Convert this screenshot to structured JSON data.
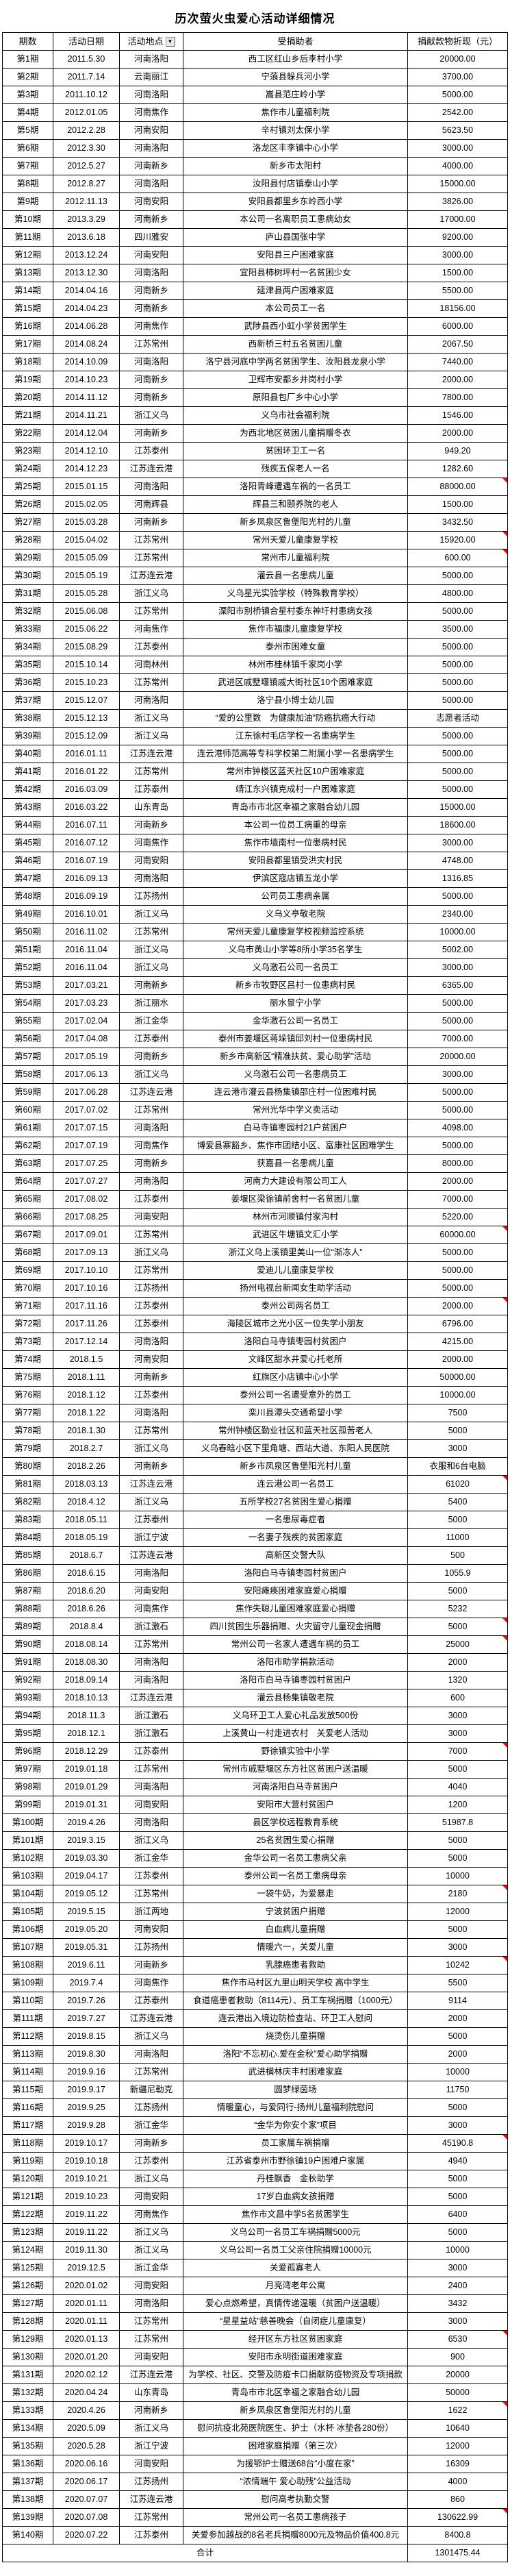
{
  "title": "历次萤火虫爱心活动详细情况",
  "colors": {
    "note_marker": "#ff0000",
    "grid": "#000000",
    "filter_button_bg": "#e8e8e8"
  },
  "table": {
    "headers": [
      "期数",
      "活动日期",
      "活动地点",
      "受捐助者",
      "捐献款物折现（元）"
    ],
    "filter_glyph": "▼",
    "total_label": "合计",
    "total_amount": "1301475.44",
    "rows": [
      {
        "p": "第1期",
        "d": "2011.5.30",
        "l": "河南洛阳",
        "r": "西工区红山乡后李村小学",
        "a": "20000.00"
      },
      {
        "p": "第2期",
        "d": "2011.7.14",
        "l": "云南丽江",
        "r": "宁蒗县躲兵河小学",
        "a": "3700.00"
      },
      {
        "p": "第3期",
        "d": "2011.10.12",
        "l": "河南洛阳",
        "r": "嵩县范庄岭小学",
        "a": "5000.00"
      },
      {
        "p": "第4期",
        "d": "2012.01.05",
        "l": "河南焦作",
        "r": "焦作市儿童福利院",
        "a": "2542.00"
      },
      {
        "p": "第5期",
        "d": "2012.2.28",
        "l": "河南安阳",
        "r": "辛村镇刘太保小学",
        "a": "5623.50"
      },
      {
        "p": "第6期",
        "d": "2012.3.30",
        "l": "河南洛阳",
        "r": "洛龙区丰李镇中心小学",
        "a": "3000.00"
      },
      {
        "p": "第7期",
        "d": "2012.5.27",
        "l": "河南新乡",
        "r": "新乡市太阳村",
        "a": "4000.00"
      },
      {
        "p": "第8期",
        "d": "2012.8.27",
        "l": "河南洛阳",
        "r": "汝阳县付店镇泰山小学",
        "a": "15000.00"
      },
      {
        "p": "第9期",
        "d": "2012.11.13",
        "l": "河南安阳",
        "r": "安阳县都里乡东岭西小学",
        "a": "3826.00"
      },
      {
        "p": "第10期",
        "d": "2013.3.29",
        "l": "河南新乡",
        "r": "本公司一名离职员工患病幼女",
        "a": "17000.00"
      },
      {
        "p": "第11期",
        "d": "2013.6.18",
        "l": "四川雅安",
        "r": "庐山县国张中学",
        "a": "9200.00"
      },
      {
        "p": "第12期",
        "d": "2013.12.24",
        "l": "河南安阳",
        "r": "安阳县三户困难家庭",
        "a": "3000.00"
      },
      {
        "p": "第13期",
        "d": "2013.12.30",
        "l": "河南洛阳",
        "r": "宜阳县柿树坪村一名贫困少女",
        "a": "1500.00"
      },
      {
        "p": "第14期",
        "d": "2014.04.16",
        "l": "河南新乡",
        "r": "延津县两户困难家庭",
        "a": "5500.00"
      },
      {
        "p": "第15期",
        "d": "2014.04.23",
        "l": "河南新乡",
        "r": "本公司员工一名",
        "a": "18156.00"
      },
      {
        "p": "第16期",
        "d": "2014.06.28",
        "l": "河南焦作",
        "r": "武陟县西小虹小学贫困学生",
        "a": "6000.00"
      },
      {
        "p": "第17期",
        "d": "2014.08.24",
        "l": "江苏常州",
        "r": "西新桥三村五名贫困儿童",
        "a": "2067.50"
      },
      {
        "p": "第18期",
        "d": "2014.10.09",
        "l": "河南洛阳",
        "r": "洛宁县河底中学两名贫困学生、汝阳县龙泉小学",
        "a": "7440.00"
      },
      {
        "p": "第19期",
        "d": "2014.10.23",
        "l": "河南新乡",
        "r": "卫辉市安都乡井岗村小学",
        "a": "2000.00"
      },
      {
        "p": "第20期",
        "d": "2014.11.12",
        "l": "河南新乡",
        "r": "原阳县包厂乡中心小学",
        "a": "7800.00"
      },
      {
        "p": "第21期",
        "d": "2014.11.21",
        "l": "浙江义乌",
        "r": "义乌市社会福利院",
        "a": "1546.00"
      },
      {
        "p": "第22期",
        "d": "2014.12.04",
        "l": "河南新乡",
        "r": "为西北地区贫困儿童捐赠冬衣",
        "a": "2000.00"
      },
      {
        "p": "第23期",
        "d": "2014.12.10",
        "l": "江苏泰州",
        "r": "贫困环卫工一名",
        "a": "949.20"
      },
      {
        "p": "第24期",
        "d": "2014.12.23",
        "l": "江苏连云港",
        "r": "残疾五保老人一名",
        "a": "1282.60"
      },
      {
        "p": "第25期",
        "d": "2015.01.15",
        "l": "河南洛阳",
        "r": "洛阳青峰遭遇车祸的一名员工",
        "a": "88000.00",
        "n": true
      },
      {
        "p": "第26期",
        "d": "2015.02.05",
        "l": "河南辉县",
        "r": "辉县三和颐养院的老人",
        "a": "1500.00"
      },
      {
        "p": "第27期",
        "d": "2015.03.28",
        "l": "河南新乡",
        "r": "新乡凤泉区鲁堡阳光村的儿童",
        "a": "3432.50"
      },
      {
        "p": "第28期",
        "d": "2015.04.02",
        "l": "江苏常州",
        "r": "常州天爱儿童康复学校",
        "a": "15920.00",
        "n": true
      },
      {
        "p": "第29期",
        "d": "2015.05.09",
        "l": "江苏常州",
        "r": "常州市儿童福利院",
        "a": "600.00",
        "n": true
      },
      {
        "p": "第30期",
        "d": "2015.05.19",
        "l": "江苏连云港",
        "r": "灌云县一名患病儿童",
        "a": "5000.00"
      },
      {
        "p": "第31期",
        "d": "2015.05.28",
        "l": "浙江义乌",
        "r": "义乌星光实验学校（特殊教育学校）",
        "a": "4800.00"
      },
      {
        "p": "第32期",
        "d": "2015.06.08",
        "l": "江苏常州",
        "r": "溧阳市别桥镇合星村委东神圩村患病女孩",
        "a": "5000.00"
      },
      {
        "p": "第33期",
        "d": "2015.06.22",
        "l": "河南焦作",
        "r": "焦作市福康儿童康复学校",
        "a": "3500.00"
      },
      {
        "p": "第34期",
        "d": "2015.08.29",
        "l": "江苏泰州",
        "r": "泰州市困难女童",
        "a": "5000.00"
      },
      {
        "p": "第35期",
        "d": "2015.10.14",
        "l": "河南林州",
        "r": "林州市桂林镇千家岗小学",
        "a": "5000.00"
      },
      {
        "p": "第36期",
        "d": "2015.10.23",
        "l": "江苏常州",
        "r": "武进区戚墅堰镇戚大街社区10个困难家庭",
        "a": "5000.00"
      },
      {
        "p": "第37期",
        "d": "2015.12.07",
        "l": "河南洛阳",
        "r": "洛宁县小博士幼儿园",
        "a": "5000.00"
      },
      {
        "p": "第38期",
        "d": "2015.12.13",
        "l": "浙江义乌",
        "r": "“爱的公里数　为健康加油”防癌抗癌大行动",
        "a": "志愿者活动"
      },
      {
        "p": "第39期",
        "d": "2015.12.09",
        "l": "浙江义乌",
        "r": "江东徐村毛店学校一名患病学生",
        "a": "5000.00"
      },
      {
        "p": "第40期",
        "d": "2016.01.11",
        "l": "江苏连云港",
        "r": "连云港师范高等专科学校第二附属小学一名患病学生",
        "a": "5000.00"
      },
      {
        "p": "第41期",
        "d": "2016.01.22",
        "l": "江苏常州",
        "r": "常州市钟楼区蓝天社区10户困难家庭",
        "a": "5000.00"
      },
      {
        "p": "第42期",
        "d": "2016.03.09",
        "l": "江苏泰州",
        "r": "靖江东兴镇克成村一户困难家庭",
        "a": "5000.00"
      },
      {
        "p": "第43期",
        "d": "2016.03.22",
        "l": "山东青岛",
        "r": "青岛市市北区幸福之家融合幼儿园",
        "a": "15000.00"
      },
      {
        "p": "第44期",
        "d": "2016.07.11",
        "l": "河南新乡",
        "r": "本公司一位员工病重的母亲",
        "a": "18600.00"
      },
      {
        "p": "第45期",
        "d": "2016.07.12",
        "l": "河南焦作",
        "r": "焦作市墙南村一位患病村民",
        "a": "3000.00"
      },
      {
        "p": "第46期",
        "d": "2016.07.19",
        "l": "河南安阳",
        "r": "安阳县都里镇受洪灾村民",
        "a": "4748.00"
      },
      {
        "p": "第47期",
        "d": "2016.09.13",
        "l": "河南洛阳",
        "r": "伊滨区寇店镇五龙小学",
        "a": "1316.85"
      },
      {
        "p": "第48期",
        "d": "2016.09.19",
        "l": "江苏扬州",
        "r": "公司员工患病亲属",
        "a": "5000.00"
      },
      {
        "p": "第49期",
        "d": "2016.10.01",
        "l": "浙江义乌",
        "r": "义乌义亭敬老院",
        "a": "2340.00"
      },
      {
        "p": "第50期",
        "d": "2016.11.02",
        "l": "江苏常州",
        "r": "常州天爱儿童康复学校视频监控系统",
        "a": "10000.00"
      },
      {
        "p": "第51期",
        "d": "2016.11.04",
        "l": "浙江义乌",
        "r": "义乌市黄山小学等8所小学35名学生",
        "a": "5002.00"
      },
      {
        "p": "第52期",
        "d": "2016.11.04",
        "l": "浙江义乌",
        "r": "义乌激石公司一名员工",
        "a": "3000.00"
      },
      {
        "p": "第53期",
        "d": "2017.03.21",
        "l": "河南新乡",
        "r": "新乡市牧野区吕村一位患病村民",
        "a": "6365.00"
      },
      {
        "p": "第54期",
        "d": "2017.03.23",
        "l": "浙江丽水",
        "r": "丽水景宁小学",
        "a": "5000.00"
      },
      {
        "p": "第55期",
        "d": "2017.02.04",
        "l": "浙江金华",
        "r": "金华激石公司一名员工",
        "a": "5000.00"
      },
      {
        "p": "第56期",
        "d": "2017.04.08",
        "l": "江苏泰州",
        "r": "泰州市姜堰区蒋垛镇邱刘村一位患病村民",
        "a": "7000.00"
      },
      {
        "p": "第57期",
        "d": "2017.05.19",
        "l": "河南新乡",
        "r": "新乡市高新区“精准扶贫、爱心助学”活动",
        "a": "20000.00"
      },
      {
        "p": "第58期",
        "d": "2017.06.13",
        "l": "浙江义乌",
        "r": "义乌激石公司一名患病员工",
        "a": "3000.00"
      },
      {
        "p": "第59期",
        "d": "2017.06.28",
        "l": "江苏连云港",
        "r": "连云港市灌云县杨集镇邵庄村一位困难村民",
        "a": "5000.00"
      },
      {
        "p": "第60期",
        "d": "2017.07.02",
        "l": "江苏常州",
        "r": "常州光华中学义卖活动",
        "a": "5000.00"
      },
      {
        "p": "第61期",
        "d": "2017.07.15",
        "l": "河南洛阳",
        "r": "白马寺镇枣园村21户贫困户",
        "a": "4098.00"
      },
      {
        "p": "第62期",
        "d": "2017.07.19",
        "l": "河南焦作",
        "r": "博爱县寨豁乡、焦作市团结小区、富康社区困难学生",
        "a": "5000.00"
      },
      {
        "p": "第63期",
        "d": "2017.07.25",
        "l": "河南新乡",
        "r": "获嘉县一名患病儿童",
        "a": "8000.00"
      },
      {
        "p": "第64期",
        "d": "2017.07.27",
        "l": "河南洛阳",
        "r": "河南力大建设有限公司工人",
        "a": "2000.00"
      },
      {
        "p": "第65期",
        "d": "2017.08.02",
        "l": "江苏泰州",
        "r": "姜堰区梁徐镇前舍村一名贫困儿童",
        "a": "7000.00"
      },
      {
        "p": "第66期",
        "d": "2017.08.25",
        "l": "河南安阳",
        "r": "林州市河顺镇付家沟村",
        "a": "5220.00"
      },
      {
        "p": "第67期",
        "d": "2017.09.01",
        "l": "江苏常州",
        "r": "武进区牛塘镇文汇小学",
        "a": "60000.00",
        "n": true
      },
      {
        "p": "第68期",
        "d": "2017.09.13",
        "l": "浙江义乌",
        "r": "浙江义乌上溪镇里美山一位“渐冻人”",
        "a": "5000.00"
      },
      {
        "p": "第69期",
        "d": "2017.10.10",
        "l": "江苏常州",
        "r": "爱迪儿儿童康复学校",
        "a": "5000.00"
      },
      {
        "p": "第70期",
        "d": "2017.10.16",
        "l": "江苏扬州",
        "r": "扬州电视台新闻女生助学活动",
        "a": "5000.00"
      },
      {
        "p": "第71期",
        "d": "2017.11.16",
        "l": "江苏泰州",
        "r": "泰州公司两名员工",
        "a": "2000.00",
        "n": true
      },
      {
        "p": "第72期",
        "d": "2017.11.26",
        "l": "江苏泰州",
        "r": "海陵区城市之光小区一位失学小朋友",
        "a": "6796.00"
      },
      {
        "p": "第73期",
        "d": "2017.12.14",
        "l": "河南洛阳",
        "r": "洛阳白马寺镇枣园村贫困户",
        "a": "4215.00"
      },
      {
        "p": "第74期",
        "d": "2018.1.5",
        "l": "河南安阳",
        "r": "文峰区甜水井爱心托老所",
        "a": "2000.00"
      },
      {
        "p": "第75期",
        "d": "2018.1.11",
        "l": "河南新乡",
        "r": "红旗区小店镇中心小学",
        "a": "50000.00"
      },
      {
        "p": "第76期",
        "d": "2018.1.12",
        "l": "江苏泰州",
        "r": "泰州公司一名遭受意外的员工",
        "a": "10000.00"
      },
      {
        "p": "第77期",
        "d": "2018.1.22",
        "l": "河南洛阳",
        "r": "栾川县潭头交通希望小学",
        "a": "7500"
      },
      {
        "p": "第78期",
        "d": "2018.1.30",
        "l": "江苏常州",
        "r": "常州钟楼区勤业社区和蓝天社区孤苦老人",
        "a": "5000"
      },
      {
        "p": "第79期",
        "d": "2018.2.7",
        "l": "浙江义乌",
        "r": "义乌春晗小区下里角塘、西站大道、东阳人民医院",
        "a": "3000"
      },
      {
        "p": "第80期",
        "d": "2018.2.26",
        "l": "河南新乡",
        "r": "新乡市凤泉区鲁堡阳光村儿童",
        "a": "衣服和6台电脑"
      },
      {
        "p": "第81期",
        "d": "2018.03.13",
        "l": "江苏连云港",
        "r": "连云港公司一名员工",
        "a": "61020",
        "n": true
      },
      {
        "p": "第82期",
        "d": "2018.4.12",
        "l": "浙江义乌",
        "r": "五所学校27名贫困生爱心捐赠",
        "a": "5400"
      },
      {
        "p": "第83期",
        "d": "2018.05.11",
        "l": "江苏泰州",
        "r": "一名患尿毒症者",
        "a": "5000"
      },
      {
        "p": "第84期",
        "d": "2018.05.19",
        "l": "浙江宁波",
        "r": "一名妻子残疾的贫困家庭",
        "a": "11000"
      },
      {
        "p": "第85期",
        "d": "2018.6.7",
        "l": "江苏连云港",
        "r": "高新区交警大队",
        "a": "500"
      },
      {
        "p": "第86期",
        "d": "2018.6.15",
        "l": "河南洛阳",
        "r": "洛阳白马寺镇枣园村贫困户",
        "a": "1055.9"
      },
      {
        "p": "第87期",
        "d": "2018.6.20",
        "l": "河南安阳",
        "r": "安阳瘫痪困难家庭爱心捐赠",
        "a": "5000"
      },
      {
        "p": "第88期",
        "d": "2018.6.26",
        "l": "河南焦作",
        "r": "焦作失聪儿童困难家庭爱心捐赠",
        "a": "5232"
      },
      {
        "p": "第89期",
        "d": "2018.8.4",
        "l": "浙江激石",
        "r": "四川贫困生乐器捐赠、火灾留守儿童现金捐赠",
        "a": "5000",
        "n": true
      },
      {
        "p": "第90期",
        "d": "2018.08.14",
        "l": "江苏常州",
        "r": "常州公司一名家人遭遇车祸的员工",
        "a": "25000",
        "n": true
      },
      {
        "p": "第91期",
        "d": "2018.08.30",
        "l": "河南洛阳",
        "r": "洛阳市助学捐款活动",
        "a": "2000"
      },
      {
        "p": "第92期",
        "d": "2018.09.14",
        "l": "河南洛阳",
        "r": "洛阳市白马寺镇枣园村贫困户",
        "a": "1320"
      },
      {
        "p": "第93期",
        "d": "2018.10.13",
        "l": "江苏连云港",
        "r": "灌云县杨集镇敬老院",
        "a": "600"
      },
      {
        "p": "第94期",
        "d": "2018.11.3",
        "l": "浙江激石",
        "r": "义乌环卫工人爱心礼品发放500份",
        "a": "3000"
      },
      {
        "p": "第95期",
        "d": "2018.12.1",
        "l": "浙江激石",
        "r": "上溪黄山一村走进农村　关爱老人活动",
        "a": "3000"
      },
      {
        "p": "第96期",
        "d": "2018.12.29",
        "l": "江苏泰州",
        "r": "野徐镇实验中小学",
        "a": "7000",
        "n": true
      },
      {
        "p": "第97期",
        "d": "2019.01.18",
        "l": "江苏常州",
        "r": "常州市戚墅堰区东方社区贫困户送温暖",
        "a": "5000"
      },
      {
        "p": "第98期",
        "d": "2019.01.29",
        "l": "河南洛阳",
        "r": "河南洛阳白马寺贫困户",
        "a": "4040"
      },
      {
        "p": "第99期",
        "d": "2019.01.31",
        "l": "河南安阳",
        "r": "安阳市大营村贫困户",
        "a": "1200"
      },
      {
        "p": "第100期",
        "d": "2019.4.26",
        "l": "河南洛阳",
        "r": "县区学校远程教育系统",
        "a": "51987.8"
      },
      {
        "p": "第101期",
        "d": "2019.3.15",
        "l": "浙江义乌",
        "r": "25名贫困生爱心捐赠",
        "a": "5000"
      },
      {
        "p": "第102期",
        "d": "2019.03.30",
        "l": "浙江金华",
        "r": "金华公司一名员工患病父亲",
        "a": "5000"
      },
      {
        "p": "第103期",
        "d": "2019.04.17",
        "l": "江苏泰州",
        "r": "泰州公司一名员工患病母亲",
        "a": "10000"
      },
      {
        "p": "第104期",
        "d": "2019.05.12",
        "l": "江苏常州",
        "r": "一袋牛奶，为爱暴走",
        "a": "2180",
        "n": true
      },
      {
        "p": "第105期",
        "d": "2019.5.15",
        "l": "浙江两地",
        "r": "宁波贫困户捐赠",
        "a": "12000"
      },
      {
        "p": "第106期",
        "d": "2019.05.20",
        "l": "河南安阳",
        "r": "白血病儿童捐赠",
        "a": "5000"
      },
      {
        "p": "第107期",
        "d": "2019.05.31",
        "l": "江苏扬州",
        "r": "情暖六一，关爱儿童",
        "a": "3000"
      },
      {
        "p": "第108期",
        "d": "2019.6.11",
        "l": "河南新乡",
        "r": "乳腺癌患者救助",
        "a": "10242",
        "n": true
      },
      {
        "p": "第109期",
        "d": "2019.7.4",
        "l": "河南焦作",
        "r": "焦作市马村区九里山明天学校 高中学生",
        "a": "5500"
      },
      {
        "p": "第110期",
        "d": "2019.7.26",
        "l": "江苏泰州",
        "r": "食道癌患者救助（8114元）、员工车祸捐赠（1000元）",
        "a": "9114"
      },
      {
        "p": "第111期",
        "d": "2019.7.27",
        "l": "江苏连云港",
        "r": "连云港出入境边防检查站、环卫工人慰问",
        "a": "2000"
      },
      {
        "p": "第112期",
        "d": "2019.8.15",
        "l": "浙江义乌",
        "r": "烧烫伤儿童捐赠",
        "a": "5000"
      },
      {
        "p": "第113期",
        "d": "2019.8.30",
        "l": "河南洛阳",
        "r": "洛阳“不忘初心.爱在金秋”爱心助学捐赠",
        "a": "2000"
      },
      {
        "p": "第114期",
        "d": "2019.9.16",
        "l": "江苏常州",
        "r": "武进横林庆丰村困难家庭",
        "a": "10000"
      },
      {
        "p": "第115期",
        "d": "2019.9.17",
        "l": "新疆尼勒克",
        "r": "圆梦绿茵场",
        "a": "11750"
      },
      {
        "p": "第116期",
        "d": "2019.9.25",
        "l": "江苏扬州",
        "r": "情暖童心，与爱同行-扬州儿童福利院慰问",
        "a": "5000"
      },
      {
        "p": "第117期",
        "d": "2019.9.28",
        "l": "浙江金华",
        "r": "“金华为你安个家”项目",
        "a": "3000"
      },
      {
        "p": "第118期",
        "d": "2019.10.17",
        "l": "河南新乡",
        "r": "员工家属车祸捐赠",
        "a": "45190.8",
        "n": true
      },
      {
        "p": "第119期",
        "d": "2019.10.18",
        "l": "江苏泰州",
        "r": "江苏省泰州市野徐镇19户困难户家属",
        "a": "4940"
      },
      {
        "p": "第120期",
        "d": "2019.10.21",
        "l": "浙江义乌",
        "r": "丹桂飘香　金秋助学",
        "a": "5000"
      },
      {
        "p": "第121期",
        "d": "2019.10.23",
        "l": "河南安阳",
        "r": "17岁白血病女孩捐赠",
        "a": "5000"
      },
      {
        "p": "第122期",
        "d": "2019.11.22",
        "l": "河南焦作",
        "r": "焦作市文昌中学5名贫困学生",
        "a": "6400"
      },
      {
        "p": "第123期",
        "d": "2019.11.22",
        "l": "浙江义乌",
        "r": "义乌公司一名员工车祸捐赠5000元",
        "a": "5000"
      },
      {
        "p": "第124期",
        "d": "2019.11.30",
        "l": "浙江义乌",
        "r": "义乌公司一名员工父亲住院捐赠10000元",
        "a": "10000"
      },
      {
        "p": "第125期",
        "d": "2019.12.5",
        "l": "浙江金华",
        "r": "关爱孤寡老人",
        "a": "3000"
      },
      {
        "p": "第126期",
        "d": "2020.01.02",
        "l": "河南安阳",
        "r": "月亮湾老年公寓",
        "a": "2400"
      },
      {
        "p": "第127期",
        "d": "2020.01.11",
        "l": "河南洛阳",
        "r": "爱心点燃希望，真情传递温暖（贫困户送温暖）",
        "a": "3432"
      },
      {
        "p": "第128期",
        "d": "2020.01.11",
        "l": "江苏常州",
        "r": "“星星益站”慈善晚会（自闭症儿童康复）",
        "a": "3000"
      },
      {
        "p": "第129期",
        "d": "2020.01.13",
        "l": "江苏常州",
        "r": "经开区东方社区贫困家庭",
        "a": "6530",
        "n": true
      },
      {
        "p": "第130期",
        "d": "2020.01.20",
        "l": "河南安阳",
        "r": "安阳市永明街道困难家庭",
        "a": "900"
      },
      {
        "p": "第131期",
        "d": "2020.02.12",
        "l": "江苏连云港",
        "r": "为学校、社区、交警及防疫卡口捐献防疫物资及专项捐款",
        "a": "20000"
      },
      {
        "p": "第132期",
        "d": "2020.04.24",
        "l": "山东青岛",
        "r": "青岛市市北区幸福之家融合幼儿园",
        "a": "50000"
      },
      {
        "p": "第133期",
        "d": "2020.4.26",
        "l": "河南新乡",
        "r": "新乡凤泉区鲁堡阳光村的儿童",
        "a": "1622",
        "n": true
      },
      {
        "p": "第134期",
        "d": "2020.5.09",
        "l": "浙江义乌",
        "r": "慰问抗疫北苑医院医生、护士（水杯 冰垫各280份）",
        "a": "10640"
      },
      {
        "p": "第135期",
        "d": "2020.5.28",
        "l": "浙江宁波",
        "r": "困难家庭捐赠（第三次）",
        "a": "12000"
      },
      {
        "p": "第136期",
        "d": "2020.06.16",
        "l": "河南安阳",
        "r": "为援鄂护士赠送68台“小度在家”",
        "a": "16309"
      },
      {
        "p": "第137期",
        "d": "2020.06.17",
        "l": "江苏扬州",
        "r": "“浓情端午 爱心助残”公益活动",
        "a": "4000"
      },
      {
        "p": "第138期",
        "d": "2020.07.07",
        "l": "江苏连云港",
        "r": "慰问高考执勤交警",
        "a": "860"
      },
      {
        "p": "第139期",
        "d": "2020.07.08",
        "l": "江苏常州",
        "r": "常州公司一名员工患病孩子",
        "a": "130622.99",
        "n": true
      },
      {
        "p": "第140期",
        "d": "2020.07.22",
        "l": "江苏泰州",
        "r": "关爱参加越战的8名老兵捐赠8000元及物品价值400.8元",
        "a": "8400.8"
      }
    ]
  }
}
